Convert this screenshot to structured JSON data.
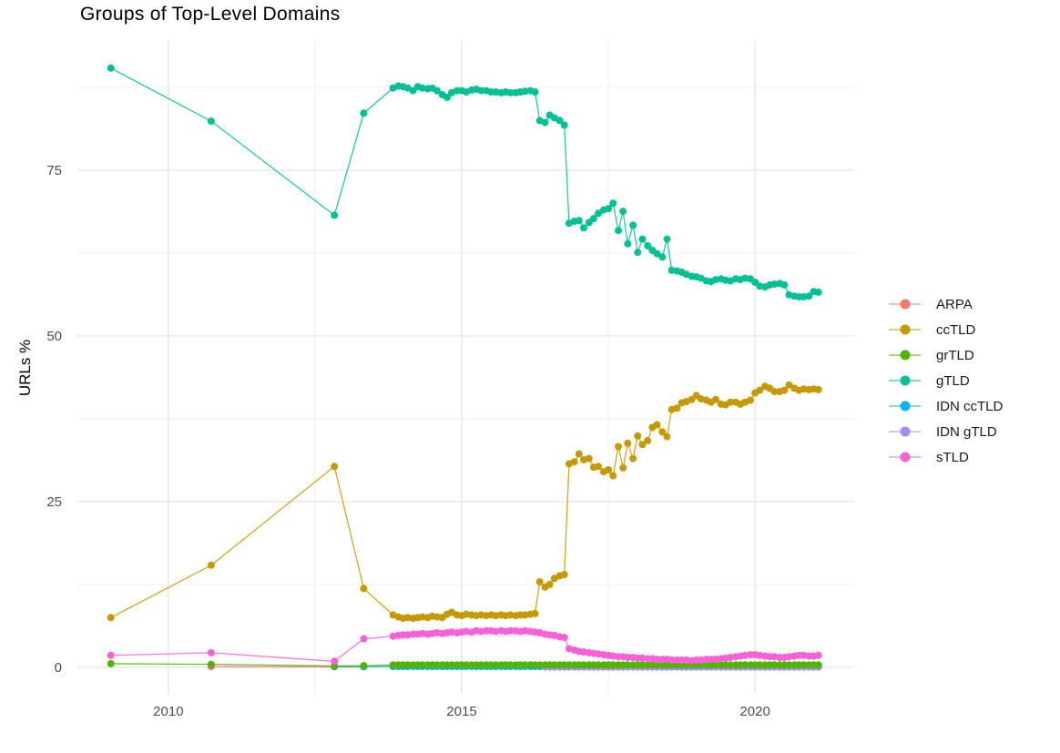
{
  "chart_data": {
    "type": "line",
    "title": "Groups of Top-Level Domains",
    "xlabel": "",
    "ylabel": "URLs %",
    "xlim": [
      2008.45,
      2021.69
    ],
    "ylim": [
      -4.0,
      94.5
    ],
    "grid": true,
    "legend_position": "right",
    "x_ticks": [
      2010,
      2015,
      2020
    ],
    "x_tick_labels": [
      "2010",
      "2015",
      "2020"
    ],
    "x_minor_ticks": [
      2012.5,
      2017.5
    ],
    "y_ticks": [
      0,
      25,
      50,
      75
    ],
    "y_tick_labels": [
      "0",
      "25",
      "50",
      "75"
    ],
    "y_minor_ticks": [
      12.5,
      37.5,
      62.5,
      87.5
    ],
    "draw_order": [
      "ARPA",
      "IDN ccTLD",
      "IDN gTLD",
      "ccTLD",
      "gTLD",
      "grTLD",
      "sTLD"
    ],
    "x_monthly": [
      2013.83,
      2013.92,
      2014.0,
      2014.08,
      2014.17,
      2014.25,
      2014.33,
      2014.42,
      2014.5,
      2014.58,
      2014.67,
      2014.75,
      2014.83,
      2014.92,
      2015.0,
      2015.08,
      2015.17,
      2015.25,
      2015.33,
      2015.42,
      2015.5,
      2015.58,
      2015.67,
      2015.75,
      2015.83,
      2015.92,
      2016.0,
      2016.08,
      2016.17,
      2016.25,
      2016.33,
      2016.42,
      2016.5,
      2016.58,
      2016.67,
      2016.75,
      2016.83,
      2016.92,
      2017.0,
      2017.08,
      2017.17,
      2017.25,
      2017.33,
      2017.42,
      2017.5,
      2017.58,
      2017.67,
      2017.75,
      2017.83,
      2017.92,
      2018.0,
      2018.08,
      2018.17,
      2018.25,
      2018.33,
      2018.42,
      2018.5,
      2018.58,
      2018.67,
      2018.75,
      2018.83,
      2018.92,
      2019.0,
      2019.08,
      2019.17,
      2019.25,
      2019.33,
      2019.42,
      2019.5,
      2019.58,
      2019.67,
      2019.75,
      2019.83,
      2019.92,
      2020.0,
      2020.08,
      2020.17,
      2020.25,
      2020.33,
      2020.42,
      2020.5,
      2020.58,
      2020.67,
      2020.75,
      2020.83,
      2020.92,
      2021.0,
      2021.08
    ],
    "series": [
      {
        "name": "ARPA",
        "color": "#F8766D",
        "pre": [
          [
            2010.73,
            0.12
          ],
          [
            2012.83,
            0.08
          ],
          [
            2013.33,
            0.08
          ]
        ],
        "values": null
      },
      {
        "name": "ccTLD",
        "color": "#C49A00",
        "pre": [
          [
            2009.02,
            7.5
          ],
          [
            2010.73,
            15.4
          ],
          [
            2012.83,
            30.3
          ],
          [
            2013.33,
            11.9
          ]
        ],
        "values": [
          7.9,
          7.6,
          7.4,
          7.5,
          7.4,
          7.5,
          7.6,
          7.5,
          7.7,
          7.6,
          7.5,
          8.0,
          8.3,
          7.9,
          7.8,
          8.0,
          7.9,
          7.8,
          7.9,
          7.8,
          7.9,
          7.8,
          7.9,
          7.8,
          7.9,
          7.8,
          7.9,
          7.9,
          8.0,
          8.1,
          12.9,
          12.1,
          12.5,
          13.4,
          13.8,
          14.0,
          30.7,
          31.0,
          32.2,
          31.3,
          31.5,
          30.2,
          30.3,
          29.5,
          29.8,
          28.9,
          33.3,
          30.1,
          33.8,
          31.5,
          34.9,
          33.6,
          34.2,
          36.2,
          36.6,
          35.5,
          34.8,
          38.9,
          39.1,
          39.9,
          40.1,
          40.4,
          41.0,
          40.5,
          40.3,
          40.0,
          40.4,
          39.7,
          39.6,
          40.0,
          40.0,
          39.7,
          40.0,
          40.3,
          41.4,
          41.8,
          42.4,
          42.1,
          41.6,
          41.6,
          41.8,
          42.6,
          42.1,
          41.8,
          42.0,
          41.9,
          42.0,
          41.9
        ]
      },
      {
        "name": "grTLD",
        "color": "#53B400",
        "pre": [
          [
            2009.02,
            0.55
          ],
          [
            2010.73,
            0.45
          ],
          [
            2012.83,
            0.2
          ],
          [
            2013.33,
            0.25
          ]
        ],
        "values_const": 0.35
      },
      {
        "name": "gTLD",
        "color": "#00C094",
        "pre": [
          [
            2009.02,
            90.4
          ],
          [
            2010.73,
            82.4
          ],
          [
            2012.83,
            68.2
          ],
          [
            2013.33,
            83.6
          ]
        ],
        "values": [
          87.4,
          87.7,
          87.6,
          87.4,
          87.0,
          87.6,
          87.4,
          87.3,
          87.4,
          87.0,
          86.4,
          86.0,
          86.7,
          87.0,
          87.0,
          86.8,
          87.1,
          87.2,
          87.0,
          87.0,
          86.8,
          86.8,
          86.7,
          86.8,
          86.7,
          86.7,
          86.8,
          86.9,
          87.0,
          86.8,
          82.5,
          82.2,
          83.3,
          82.9,
          82.5,
          81.8,
          67.0,
          67.3,
          67.4,
          66.3,
          67.1,
          67.7,
          68.5,
          69.0,
          69.2,
          70.0,
          65.9,
          68.8,
          63.9,
          66.7,
          62.6,
          64.6,
          63.6,
          62.9,
          62.4,
          61.9,
          64.6,
          59.9,
          59.8,
          59.6,
          59.3,
          59.0,
          58.9,
          58.7,
          58.3,
          58.2,
          58.5,
          58.6,
          58.4,
          58.3,
          58.6,
          58.5,
          58.7,
          58.6,
          58.1,
          57.5,
          57.4,
          57.7,
          57.8,
          57.9,
          57.7,
          56.2,
          56.0,
          55.9,
          55.9,
          56.0,
          56.7,
          56.6
        ]
      },
      {
        "name": "IDN ccTLD",
        "color": "#00B6EB",
        "pre": [
          [
            2012.83,
            0.1
          ],
          [
            2013.33,
            0.1
          ]
        ],
        "values_const": 0.12
      },
      {
        "name": "IDN gTLD",
        "color": "#A58AFF",
        "pre": [],
        "values_const": 0.04,
        "start_x": 2016.42
      },
      {
        "name": "sTLD",
        "color": "#FB61D7",
        "pre": [
          [
            2009.02,
            1.8
          ],
          [
            2010.73,
            2.2
          ],
          [
            2012.83,
            0.9
          ],
          [
            2013.33,
            4.3
          ]
        ],
        "values": [
          4.7,
          4.8,
          4.9,
          4.9,
          5.0,
          5.0,
          5.1,
          5.0,
          5.1,
          5.2,
          5.1,
          5.2,
          5.3,
          5.2,
          5.3,
          5.4,
          5.3,
          5.5,
          5.4,
          5.5,
          5.5,
          5.4,
          5.5,
          5.4,
          5.5,
          5.5,
          5.4,
          5.5,
          5.4,
          5.3,
          5.2,
          5.0,
          4.9,
          4.8,
          4.6,
          4.5,
          2.8,
          2.6,
          2.4,
          2.3,
          2.2,
          2.1,
          2.0,
          1.9,
          1.8,
          1.7,
          1.6,
          1.6,
          1.5,
          1.5,
          1.4,
          1.4,
          1.3,
          1.3,
          1.2,
          1.2,
          1.2,
          1.1,
          1.1,
          1.1,
          1.1,
          1.0,
          1.1,
          1.1,
          1.2,
          1.2,
          1.2,
          1.3,
          1.4,
          1.5,
          1.6,
          1.7,
          1.8,
          1.9,
          1.9,
          1.8,
          1.7,
          1.6,
          1.6,
          1.5,
          1.5,
          1.6,
          1.7,
          1.8,
          1.8,
          1.7,
          1.7,
          1.8
        ]
      }
    ]
  }
}
